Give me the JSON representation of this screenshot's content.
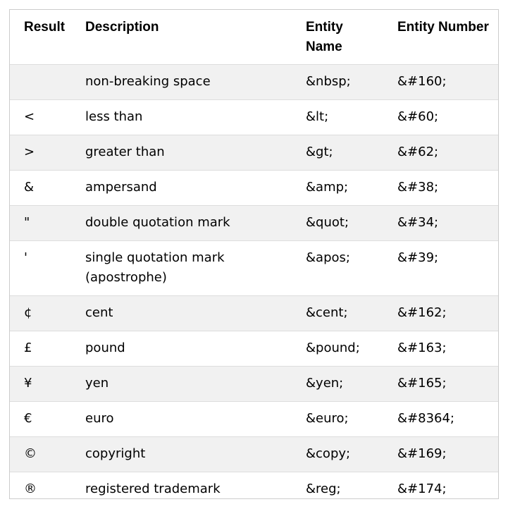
{
  "table": {
    "headers": {
      "result": "Result",
      "description": "Description",
      "entity_name": "Entity Name",
      "entity_number": "Entity Number"
    },
    "rows": [
      {
        "result": " ",
        "description": "non-breaking space",
        "entity_name": "&nbsp;",
        "entity_number": "&#160;"
      },
      {
        "result": "<",
        "description": "less than",
        "entity_name": "&lt;",
        "entity_number": "&#60;"
      },
      {
        "result": ">",
        "description": "greater than",
        "entity_name": "&gt;",
        "entity_number": "&#62;"
      },
      {
        "result": "&",
        "description": "ampersand",
        "entity_name": "&amp;",
        "entity_number": "&#38;"
      },
      {
        "result": "\"",
        "description": "double quotation mark",
        "entity_name": "&quot;",
        "entity_number": "&#34;"
      },
      {
        "result": "'",
        "description": "single quotation mark (apostrophe)",
        "entity_name": "&apos;",
        "entity_number": "&#39;"
      },
      {
        "result": "¢",
        "description": "cent",
        "entity_name": "&cent;",
        "entity_number": "&#162;"
      },
      {
        "result": "£",
        "description": "pound",
        "entity_name": "&pound;",
        "entity_number": "&#163;"
      },
      {
        "result": "¥",
        "description": "yen",
        "entity_name": "&yen;",
        "entity_number": "&#165;"
      },
      {
        "result": "€",
        "description": "euro",
        "entity_name": "&euro;",
        "entity_number": "&#8364;"
      },
      {
        "result": "©",
        "description": "copyright",
        "entity_name": "&copy;",
        "entity_number": "&#169;"
      },
      {
        "result": "®",
        "description": "registered trademark",
        "entity_name": "&reg;",
        "entity_number": "&#174;"
      }
    ]
  }
}
